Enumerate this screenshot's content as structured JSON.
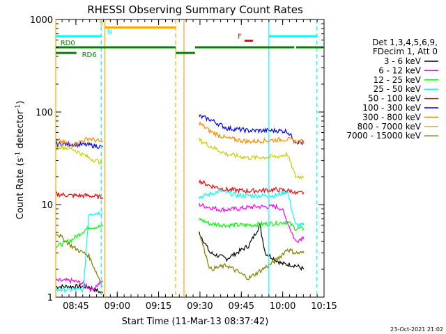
{
  "chart_data": {
    "type": "line",
    "title": "RHESSI Observing Summary Count Rates",
    "xlabel": "Start Time (11-Mar-13 08:37:42)",
    "ylabel_main": "Count Rate (s",
    "ylabel_sup1": "-1",
    "ylabel_mid": " detector",
    "ylabel_sup2": "-1",
    "ylabel_end": ")",
    "y_scale": "log",
    "ylim": [
      1,
      1000
    ],
    "x_unit": "minutes after 08:37:42",
    "xlim": [
      0,
      97.3
    ],
    "x_ticks": [
      {
        "label": "08:45",
        "t": 7.3
      },
      {
        "label": "09:00",
        "t": 22.3
      },
      {
        "label": "09:15",
        "t": 37.3
      },
      {
        "label": "09:30",
        "t": 52.3
      },
      {
        "label": "09:45",
        "t": 67.3
      },
      {
        "label": "10:00",
        "t": 82.3
      },
      {
        "label": "10:15",
        "t": 97.3
      }
    ],
    "y_ticks": [
      {
        "label": "1",
        "v": 1
      },
      {
        "label": "10",
        "v": 10
      },
      {
        "label": "100",
        "v": 100
      },
      {
        "label": "1000",
        "v": 1000
      }
    ],
    "legend_header": [
      "Det 1,3,4,5,6,9,",
      "FDecim 1, Att 0"
    ],
    "timestamp": "23-Oct-2021 21:02",
    "series": [
      {
        "name": "3 - 6 keV",
        "color": "#000000",
        "segments": [
          [
            [
              0,
              1.3
            ],
            [
              6,
              1.3
            ],
            [
              12,
              1.3
            ],
            [
              17,
              1.1
            ]
          ],
          [
            [
              52,
              5
            ],
            [
              56,
              3
            ],
            [
              62,
              2.6
            ],
            [
              70,
              3.6
            ],
            [
              74,
              6
            ],
            [
              76,
              3
            ],
            [
              82,
              2.3
            ],
            [
              87,
              2.2
            ],
            [
              90,
              2
            ]
          ]
        ]
      },
      {
        "name": "6 - 12 keV",
        "color": "#ff00ff",
        "segments": [
          [
            [
              0,
              1.5
            ],
            [
              6,
              1.5
            ],
            [
              10,
              1.4
            ],
            [
              13,
              1.2
            ],
            [
              17,
              1.5
            ]
          ],
          [
            [
              52,
              10
            ],
            [
              56,
              9.3
            ],
            [
              60,
              8.8
            ],
            [
              66,
              9
            ],
            [
              72,
              9.5
            ],
            [
              80,
              9.5
            ],
            [
              82,
              9
            ],
            [
              87,
              4
            ],
            [
              90,
              4.5
            ]
          ]
        ]
      },
      {
        "name": "12 - 25 keV",
        "color": "#00ff00",
        "segments": [
          [
            [
              0,
              3.5
            ],
            [
              6,
              4.2
            ],
            [
              12,
              5.7
            ],
            [
              17,
              5.8
            ]
          ],
          [
            [
              52,
              7
            ],
            [
              56,
              6.2
            ],
            [
              62,
              6
            ],
            [
              70,
              6
            ],
            [
              80,
              6.3
            ],
            [
              84,
              6.5
            ],
            [
              87,
              5.5
            ],
            [
              90,
              5.5
            ]
          ]
        ]
      },
      {
        "name": "25 - 50 keV",
        "color": "#00ffff",
        "segments": [
          [
            [
              0,
              1.2
            ],
            [
              6,
              1.2
            ],
            [
              10,
              1.2
            ],
            [
              12,
              8
            ],
            [
              17,
              8.2
            ]
          ],
          [
            [
              52,
              12
            ],
            [
              56,
              13
            ],
            [
              60,
              14
            ],
            [
              66,
              12.5
            ],
            [
              72,
              12.5
            ],
            [
              80,
              12.5
            ],
            [
              84,
              14
            ],
            [
              87,
              6
            ],
            [
              90,
              6
            ]
          ]
        ]
      },
      {
        "name": "50 - 100 keV",
        "color": "#ff0000",
        "segments": [
          [
            [
              0,
              13
            ],
            [
              6,
              12.5
            ],
            [
              12,
              12.5
            ],
            [
              17,
              12
            ]
          ],
          [
            [
              52,
              18
            ],
            [
              56,
              16
            ],
            [
              62,
              14.5
            ],
            [
              70,
              14
            ],
            [
              80,
              14.5
            ],
            [
              86,
              14
            ],
            [
              87,
              13
            ],
            [
              90,
              13.5
            ]
          ]
        ]
      },
      {
        "name": "100 - 300 keV",
        "color": "#0000ff",
        "segments": [
          [
            [
              0,
              45
            ],
            [
              6,
              45
            ],
            [
              12,
              44
            ],
            [
              17,
              42
            ]
          ],
          [
            [
              52,
              90
            ],
            [
              56,
              83
            ],
            [
              62,
              67
            ],
            [
              70,
              63
            ],
            [
              80,
              63
            ],
            [
              84,
              62
            ],
            [
              87,
              48
            ],
            [
              90,
              46
            ]
          ]
        ]
      },
      {
        "name": "300 - 800 keV",
        "color": "#ff8c00",
        "segments": [
          [
            [
              0,
              50
            ],
            [
              6,
              44
            ],
            [
              12,
              52
            ],
            [
              17,
              47
            ]
          ],
          [
            [
              52,
              76
            ],
            [
              56,
              62
            ],
            [
              62,
              52
            ],
            [
              70,
              48
            ],
            [
              80,
              50
            ],
            [
              84,
              51
            ],
            [
              87,
              48
            ],
            [
              90,
              48
            ]
          ]
        ]
      },
      {
        "name": "800 - 7000 keV",
        "color": "#cccc00",
        "segments": [
          [
            [
              0,
              43
            ],
            [
              6,
              40
            ],
            [
              12,
              32
            ],
            [
              17,
              28
            ]
          ],
          [
            [
              52,
              50
            ],
            [
              56,
              43
            ],
            [
              62,
              35
            ],
            [
              70,
              32
            ],
            [
              80,
              33
            ],
            [
              84,
              35
            ],
            [
              87,
              20
            ],
            [
              90,
              20
            ]
          ]
        ]
      },
      {
        "name": "7000 - 15000 keV",
        "color": "#808000",
        "segments": [
          [
            [
              0,
              5
            ],
            [
              6,
              3.5
            ],
            [
              12,
              2.8
            ],
            [
              17,
              1.3
            ]
          ],
          [
            [
              52,
              5
            ],
            [
              56,
              2
            ],
            [
              62,
              2.2
            ],
            [
              70,
              1.6
            ],
            [
              80,
              2.5
            ],
            [
              84,
              3.3
            ],
            [
              87,
              3
            ],
            [
              90,
              3
            ]
          ]
        ]
      }
    ],
    "event_lines": [
      {
        "t": 0,
        "color": "#ffa500",
        "style": "solid"
      },
      {
        "t": 16.5,
        "color": "#00ffff",
        "style": "dashed"
      },
      {
        "t": 17.8,
        "color": "#ffa500",
        "style": "solid"
      },
      {
        "t": 43.5,
        "color": "#ffa500",
        "style": "dashed"
      },
      {
        "t": 46.5,
        "color": "#ffa500",
        "style": "solid"
      },
      {
        "t": 77.3,
        "color": "#00ffff",
        "style": "solid"
      },
      {
        "t": 94.7,
        "color": "#00ffff",
        "style": "dashed"
      }
    ],
    "flag_bars": [
      {
        "label": "S",
        "color": "#ffa500",
        "segments": [
          [
            17.8,
            43.5
          ]
        ],
        "level": 820,
        "label_t": 15.8
      },
      {
        "label": "N",
        "color": "#00ffff",
        "segments": [
          [
            0,
            16.5
          ],
          [
            77.3,
            94.7
          ]
        ],
        "level": 660,
        "label_t": 18.6
      },
      {
        "label": "RD0",
        "color": "#008000",
        "segments": [
          [
            0,
            43.5
          ],
          [
            50.5,
            86.5
          ],
          [
            87.2,
            97
          ]
        ],
        "level": 500,
        "label_t": 1.7
      },
      {
        "label": "RD6",
        "color": "#008000",
        "segments": [
          [
            0,
            7.5
          ],
          [
            43.5,
            50.5
          ]
        ],
        "level": 435,
        "label_t": 9.5
      },
      {
        "label": "F",
        "color": "#ff0000",
        "segments": [
          [
            68.5,
            71.5
          ]
        ],
        "level": 590,
        "label_t": 66.0
      }
    ]
  }
}
